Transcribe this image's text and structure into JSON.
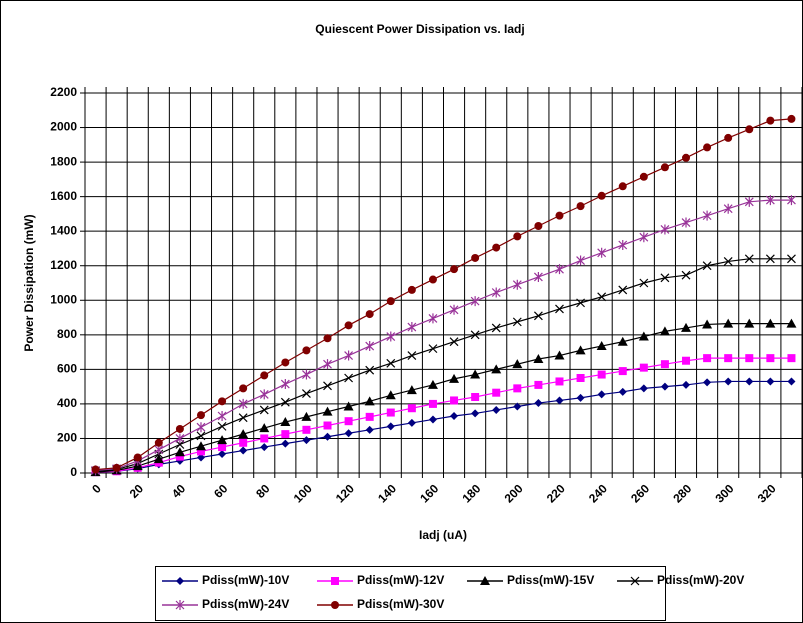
{
  "chart_data": {
    "type": "line",
    "title": "Quiescent Power Dissipation vs. Iadj",
    "x_label": "Iadj (uA)",
    "y_label": "Power Dissipation (mW)",
    "categories": [
      "0",
      null,
      "20",
      null,
      "40",
      null,
      "60",
      null,
      "80",
      null,
      "100",
      null,
      "120",
      null,
      "140",
      null,
      "160",
      null,
      "180",
      null,
      "200",
      null,
      "220",
      null,
      "240",
      null,
      "260",
      null,
      "280",
      null,
      "300",
      null,
      "320",
      null
    ],
    "ylim": [
      0,
      2200
    ],
    "yticks": [
      0,
      200,
      400,
      600,
      800,
      1000,
      1200,
      1400,
      1600,
      1800,
      2000,
      2200
    ],
    "grid": true,
    "legend": "bottom",
    "series": [
      {
        "name": "Pdiss(mW)-10V",
        "color": "#000080",
        "marker": "diamond",
        "values": [
          5,
          10,
          25,
          50,
          70,
          90,
          110,
          130,
          150,
          170,
          190,
          210,
          230,
          250,
          270,
          290,
          310,
          330,
          345,
          365,
          385,
          405,
          420,
          435,
          455,
          470,
          490,
          500,
          510,
          525,
          530,
          530,
          530,
          530
        ]
      },
      {
        "name": "Pdiss(mW)-12V",
        "color": "#ff00ff",
        "marker": "square",
        "values": [
          5,
          10,
          30,
          60,
          95,
          125,
          150,
          175,
          200,
          225,
          250,
          275,
          300,
          325,
          350,
          375,
          400,
          420,
          440,
          465,
          490,
          510,
          530,
          550,
          570,
          590,
          610,
          630,
          650,
          665,
          665,
          665,
          665,
          665
        ]
      },
      {
        "name": "Pdiss(mW)-15V",
        "color": "#000000",
        "marker": "triangle",
        "values": [
          5,
          15,
          40,
          80,
          120,
          155,
          190,
          225,
          260,
          295,
          325,
          355,
          385,
          415,
          450,
          480,
          510,
          545,
          570,
          600,
          630,
          660,
          680,
          710,
          735,
          760,
          790,
          820,
          840,
          860,
          865,
          865,
          865,
          865
        ]
      },
      {
        "name": "Pdiss(mW)-20V",
        "color": "#000000",
        "marker": "x",
        "values": [
          10,
          20,
          55,
          110,
          165,
          215,
          270,
          320,
          365,
          410,
          460,
          505,
          550,
          595,
          635,
          680,
          720,
          760,
          800,
          840,
          875,
          910,
          950,
          985,
          1020,
          1060,
          1100,
          1130,
          1145,
          1200,
          1225,
          1240,
          1240,
          1240
        ]
      },
      {
        "name": "Pdiss(mW)-24V",
        "color": "#993399",
        "marker": "star",
        "values": [
          15,
          25,
          70,
          135,
          200,
          265,
          330,
          400,
          455,
          515,
          570,
          630,
          680,
          735,
          790,
          845,
          895,
          945,
          995,
          1045,
          1090,
          1135,
          1180,
          1230,
          1275,
          1320,
          1365,
          1410,
          1450,
          1490,
          1530,
          1570,
          1580,
          1580
        ]
      },
      {
        "name": "Pdiss(mW)-30V",
        "color": "#800000",
        "marker": "circle",
        "values": [
          20,
          30,
          90,
          175,
          255,
          335,
          415,
          490,
          565,
          640,
          710,
          780,
          855,
          920,
          995,
          1060,
          1120,
          1180,
          1245,
          1305,
          1370,
          1430,
          1490,
          1545,
          1605,
          1660,
          1715,
          1770,
          1825,
          1885,
          1940,
          1990,
          2040,
          2050
        ]
      }
    ]
  }
}
